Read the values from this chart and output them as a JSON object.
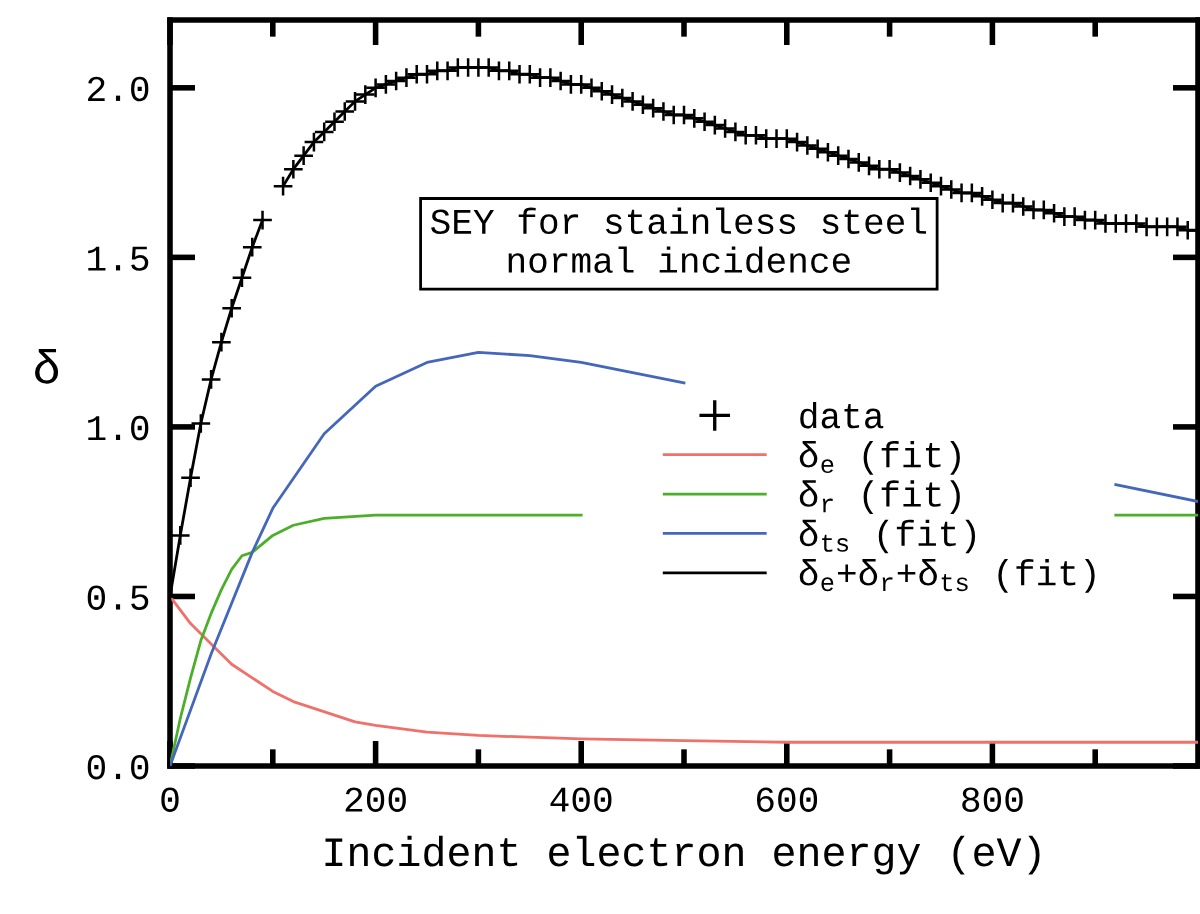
{
  "chart_data": {
    "type": "line",
    "xlabel": "Incident electron energy (eV)",
    "ylabel": "δ",
    "xlim": [
      0,
      1000
    ],
    "ylim": [
      0,
      2.2
    ],
    "xticks": [
      0,
      200,
      400,
      600,
      800
    ],
    "yticks": [
      {
        "value": 0,
        "label": "0.0"
      },
      {
        "value": 0.5,
        "label": "0.5"
      },
      {
        "value": 1,
        "label": "1.0"
      },
      {
        "value": 1.5,
        "label": "1.5"
      },
      {
        "value": 2,
        "label": "2.0"
      }
    ],
    "grid": false,
    "legend": "right",
    "annotations": [
      "SEY for stainless steel\nnormal incidence"
    ],
    "x": [
      0,
      10,
      20,
      30,
      40,
      50,
      60,
      70,
      80,
      90,
      100,
      110,
      120,
      130,
      140,
      150,
      160,
      170,
      180,
      190,
      200,
      210,
      220,
      230,
      240,
      250,
      260,
      270,
      280,
      290,
      300,
      310,
      320,
      330,
      340,
      350,
      360,
      370,
      380,
      390,
      400,
      410,
      420,
      430,
      440,
      450,
      460,
      470,
      480,
      490,
      500,
      510,
      520,
      530,
      540,
      550,
      560,
      570,
      580,
      590,
      600,
      610,
      620,
      630,
      640,
      650,
      660,
      670,
      680,
      690,
      700,
      710,
      720,
      730,
      740,
      750,
      760,
      770,
      780,
      790,
      800,
      810,
      820,
      830,
      840,
      850,
      860,
      870,
      880,
      890,
      900,
      910,
      920,
      930,
      940,
      950,
      960,
      970,
      980,
      990,
      1000
    ],
    "series": [
      {
        "name": "data",
        "type": "scatter",
        "marker": "cross",
        "color": "#000000",
        "values": [
          0.5,
          0.68,
          0.85,
          1.01,
          1.14,
          1.25,
          1.35,
          1.44,
          1.53,
          1.61,
          null,
          1.71,
          1.76,
          1.8,
          1.84,
          1.87,
          1.9,
          1.93,
          1.96,
          1.98,
          2.0,
          2.01,
          2.02,
          2.03,
          2.04,
          2.04,
          2.05,
          2.05,
          2.06,
          2.06,
          2.06,
          2.06,
          2.05,
          2.05,
          2.04,
          2.04,
          2.03,
          2.03,
          2.02,
          2.01,
          2.01,
          2.0,
          1.99,
          1.98,
          1.97,
          1.96,
          1.95,
          1.94,
          1.93,
          1.92,
          1.92,
          1.91,
          1.9,
          1.89,
          1.88,
          1.87,
          1.86,
          1.86,
          1.85,
          1.85,
          1.85,
          1.84,
          1.83,
          1.82,
          1.81,
          1.8,
          1.79,
          1.78,
          1.77,
          1.76,
          1.76,
          1.75,
          1.74,
          1.73,
          1.72,
          1.71,
          1.7,
          1.69,
          1.69,
          1.68,
          1.67,
          1.66,
          1.66,
          1.65,
          1.64,
          1.64,
          1.63,
          1.62,
          1.62,
          1.61,
          1.61,
          1.6,
          1.6,
          1.6,
          1.6,
          1.59,
          1.59,
          1.59,
          1.59,
          1.58,
          1.58
        ]
      },
      {
        "name": "δ$_{e}$ (fit)",
        "color": "#f0706a",
        "x": [
          0,
          20,
          40,
          60,
          80,
          100,
          120,
          140,
          160,
          180,
          200,
          250,
          300,
          400,
          500,
          600,
          800,
          1000
        ],
        "values": [
          0.5,
          0.42,
          0.36,
          0.3,
          0.26,
          0.22,
          0.19,
          0.17,
          0.15,
          0.13,
          0.12,
          0.1,
          0.09,
          0.08,
          0.075,
          0.07,
          0.07,
          0.07
        ]
      },
      {
        "name": "δ$_{r}$ (fit)",
        "color": "#4caf2a",
        "x": [
          0,
          10,
          20,
          30,
          40,
          50,
          60,
          70,
          80,
          100,
          120,
          150,
          200,
          300,
          400,
          600,
          920,
          1000
        ],
        "values": [
          0,
          0.14,
          0.26,
          0.37,
          0.45,
          0.52,
          0.58,
          0.62,
          0.63,
          0.68,
          0.71,
          0.73,
          0.74,
          0.74,
          0.74,
          null,
          0.74,
          0.74
        ]
      },
      {
        "name": "δ$_{ts}$ (fit)",
        "color": "#4466bb",
        "x": [
          0,
          40,
          80,
          100,
          150,
          200,
          250,
          300,
          350,
          400,
          450,
          500,
          700,
          920,
          1000
        ],
        "values": [
          0,
          0.33,
          0.63,
          0.76,
          0.98,
          1.12,
          1.19,
          1.22,
          1.21,
          1.19,
          1.16,
          1.13,
          null,
          0.83,
          0.78
        ]
      },
      {
        "name": "δ$_{e}$+δ$_{r}$+δ$_{ts}$ (fit)",
        "color": "#000000",
        "values": [
          0.5,
          0.68,
          0.85,
          1.01,
          1.14,
          1.25,
          1.35,
          1.44,
          1.53,
          1.61,
          null,
          1.71,
          1.76,
          1.8,
          1.84,
          1.87,
          1.9,
          1.93,
          1.96,
          1.98,
          2.0,
          2.01,
          2.02,
          2.03,
          2.04,
          2.04,
          2.05,
          2.05,
          2.06,
          2.06,
          2.06,
          2.06,
          2.05,
          2.05,
          2.04,
          2.04,
          2.03,
          2.03,
          2.02,
          2.01,
          2.01,
          2.0,
          1.99,
          1.98,
          1.97,
          1.96,
          1.95,
          1.94,
          1.93,
          1.92,
          1.92,
          1.91,
          1.9,
          1.89,
          1.88,
          1.87,
          1.86,
          1.86,
          1.85,
          1.85,
          1.85,
          1.84,
          1.83,
          1.82,
          1.81,
          1.8,
          1.79,
          1.78,
          1.77,
          1.76,
          1.76,
          1.75,
          1.74,
          1.73,
          1.72,
          1.71,
          1.7,
          1.69,
          1.69,
          1.68,
          1.67,
          1.66,
          1.66,
          1.65,
          1.64,
          1.64,
          1.63,
          1.62,
          1.62,
          1.61,
          1.61,
          1.6,
          1.6,
          1.6,
          1.6,
          1.59,
          1.59,
          1.59,
          1.59,
          1.58,
          1.58
        ]
      }
    ]
  }
}
